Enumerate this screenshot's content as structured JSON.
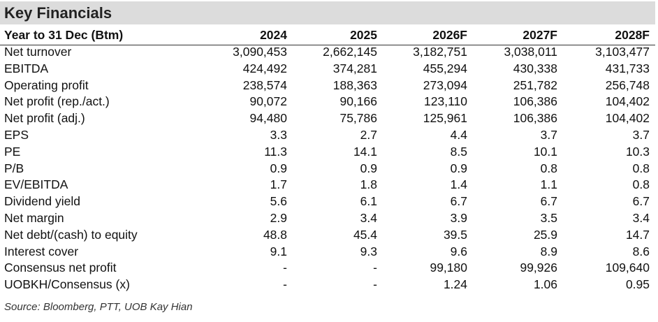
{
  "title": "Key Financials",
  "header": {
    "label": "Year to 31 Dec (Btm)",
    "years": [
      "2024",
      "2025",
      "2026F",
      "2027F",
      "2028F"
    ]
  },
  "rows": [
    {
      "label": "Net turnover",
      "values": [
        "3,090,453",
        "2,662,145",
        "3,182,751",
        "3,038,011",
        "3,103,477"
      ]
    },
    {
      "label": "EBITDA",
      "values": [
        "424,492",
        "374,281",
        "455,294",
        "430,338",
        "431,733"
      ]
    },
    {
      "label": "Operating profit",
      "values": [
        "238,574",
        "188,363",
        "273,094",
        "251,782",
        "256,748"
      ]
    },
    {
      "label": "Net profit (rep./act.)",
      "values": [
        "90,072",
        "90,166",
        "123,110",
        "106,386",
        "104,402"
      ]
    },
    {
      "label": "Net profit (adj.)",
      "values": [
        "94,480",
        "75,786",
        "125,961",
        "106,386",
        "104,402"
      ]
    },
    {
      "label": "EPS",
      "values": [
        "3.3",
        "2.7",
        "4.4",
        "3.7",
        "3.7"
      ]
    },
    {
      "label": "PE",
      "values": [
        "11.3",
        "14.1",
        "8.5",
        "10.1",
        "10.3"
      ]
    },
    {
      "label": "P/B",
      "values": [
        "0.9",
        "0.9",
        "0.9",
        "0.8",
        "0.8"
      ]
    },
    {
      "label": "EV/EBITDA",
      "values": [
        "1.7",
        "1.8",
        "1.4",
        "1.1",
        "0.8"
      ]
    },
    {
      "label": "Dividend yield",
      "values": [
        "5.6",
        "6.1",
        "6.7",
        "6.7",
        "6.7"
      ]
    },
    {
      "label": "Net margin",
      "values": [
        "2.9",
        "3.4",
        "3.9",
        "3.5",
        "3.4"
      ]
    },
    {
      "label": "Net debt/(cash) to equity",
      "values": [
        "48.8",
        "45.4",
        "39.5",
        "25.9",
        "14.7"
      ]
    },
    {
      "label": "Interest cover",
      "values": [
        "9.1",
        "9.3",
        "9.6",
        "8.9",
        "8.6"
      ]
    },
    {
      "label": "Consensus net profit",
      "values": [
        "-",
        "-",
        "99,180",
        "99,926",
        "109,640"
      ]
    },
    {
      "label": "UOBKH/Consensus (x)",
      "values": [
        "-",
        "-",
        "1.24",
        "1.06",
        "0.95"
      ]
    }
  ],
  "source": "Source: Bloomberg, PTT, UOB Kay Hian"
}
